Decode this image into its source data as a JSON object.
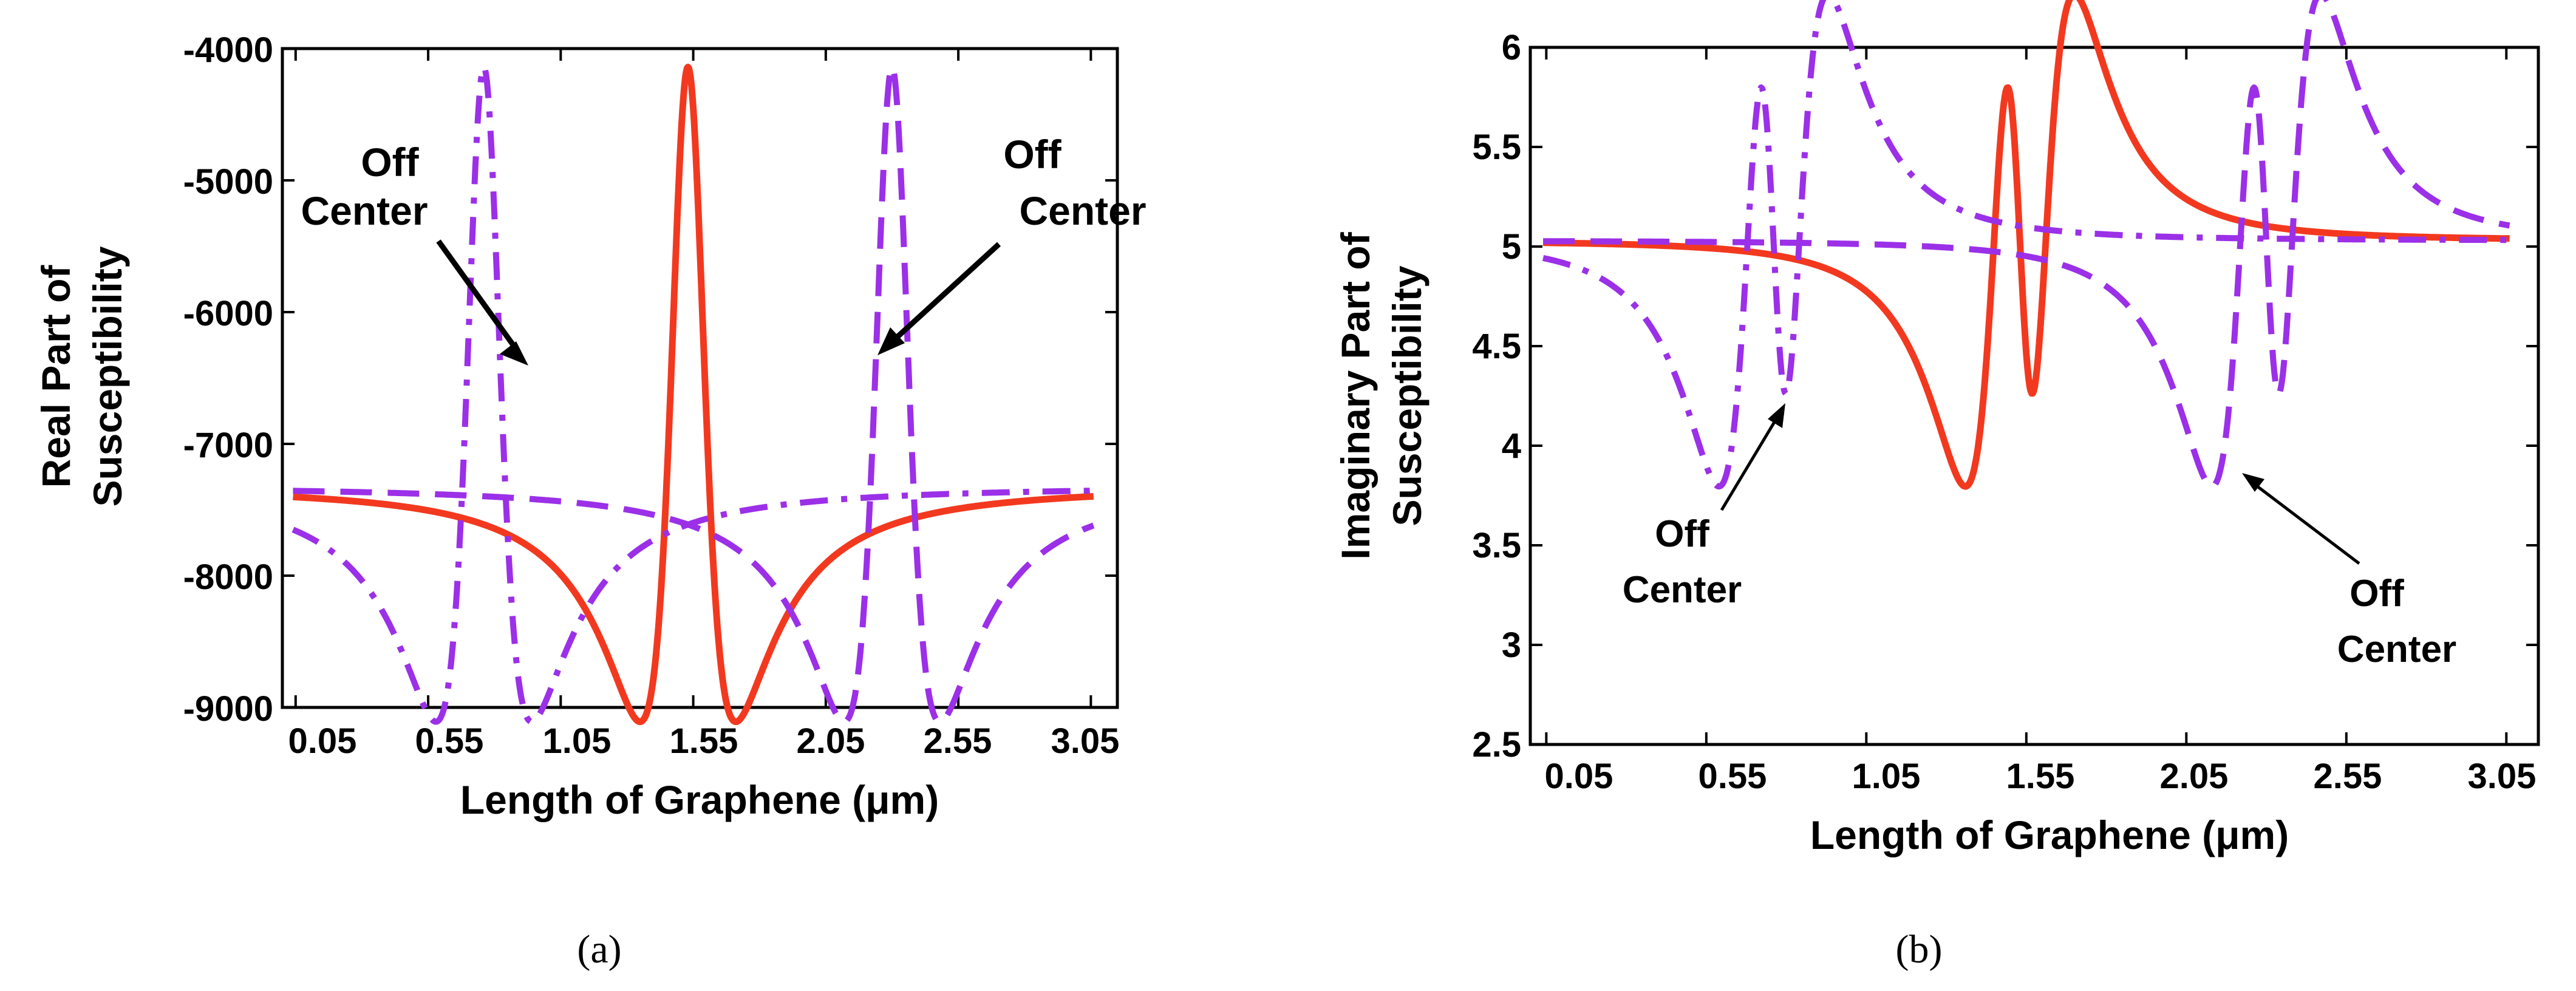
{
  "chart_data": [
    {
      "type": "line",
      "panel_label": "(a)",
      "xlabel": "Length of Graphene (μm)",
      "ylabel": [
        "Real Part of",
        "Susceptibility"
      ],
      "xlim": [
        0.0,
        3.15
      ],
      "ylim": [
        -9000,
        -4000
      ],
      "xticks": [
        0.05,
        0.55,
        1.05,
        1.55,
        2.05,
        2.55,
        3.05
      ],
      "xtick_labels": [
        "0.05",
        "0.55",
        "1.05",
        "1.55",
        "2.05",
        "2.55",
        "3.05"
      ],
      "yticks": [
        -9000,
        -8000,
        -7000,
        -6000,
        -5000,
        -4000
      ],
      "ytick_labels": [
        "-9000",
        "-8000",
        "-7000",
        "-6000",
        "-5000",
        "-4000"
      ],
      "series": [
        {
          "name": "center",
          "style": "solid",
          "color": "#f2391f",
          "baseline": -7320,
          "dispersive": true,
          "centers": [
            1.53
          ],
          "gamma": 0.14,
          "amplitude": 3180
        },
        {
          "name": "off-center-left",
          "style": "dashdot",
          "color": "#9b30e8",
          "baseline": -7320,
          "dispersive": true,
          "centers": [
            0.76
          ],
          "gamma": 0.14,
          "amplitude": 3180
        },
        {
          "name": "off-center-right",
          "style": "dashed",
          "color": "#9b30e8",
          "baseline": -7320,
          "dispersive": true,
          "centers": [
            2.3
          ],
          "gamma": 0.14,
          "amplitude": 3180
        }
      ],
      "annotations": [
        {
          "lines": [
            "Off",
            "Center"
          ],
          "side": "left"
        },
        {
          "lines": [
            "Off",
            "Center"
          ],
          "side": "right"
        }
      ]
    },
    {
      "type": "line",
      "panel_label": "(b)",
      "xlabel": "Length of Graphene (μm)",
      "ylabel": [
        "Imaginary Part of",
        "Susceptibility"
      ],
      "xlim": [
        0.0,
        3.15
      ],
      "ylim": [
        2.5,
        6.0
      ],
      "xticks": [
        0.05,
        0.55,
        1.05,
        1.55,
        2.05,
        2.55,
        3.05
      ],
      "xtick_labels": [
        "0.05",
        "0.55",
        "1.05",
        "1.55",
        "2.05",
        "2.55",
        "3.05"
      ],
      "yticks": [
        2.5,
        3.0,
        3.5,
        4.0,
        4.5,
        5.0,
        5.5,
        6.0
      ],
      "ytick_labels": [
        "2.5",
        "3",
        "3.5",
        "4",
        "4.5",
        "5",
        "5.5",
        "6"
      ],
      "series": [
        {
          "name": "center",
          "style": "solid",
          "color": "#f2391f",
          "baseline": 5.03,
          "dispersive": false,
          "centers": [
            1.53
          ],
          "gamma": 0.14,
          "amplitude": 2.25
        },
        {
          "name": "off-center-left",
          "style": "dashdot",
          "color": "#9b30e8",
          "baseline": 5.03,
          "dispersive": false,
          "centers": [
            0.76
          ],
          "gamma": 0.14,
          "amplitude": 2.25
        },
        {
          "name": "off-center-right",
          "style": "dashed",
          "color": "#9b30e8",
          "baseline": 5.03,
          "dispersive": false,
          "centers": [
            2.3
          ],
          "gamma": 0.14,
          "amplitude": 2.25
        }
      ],
      "annotations": [
        {
          "lines": [
            "Off",
            "Center"
          ],
          "side": "left"
        },
        {
          "lines": [
            "Off",
            "Center"
          ],
          "side": "right"
        }
      ]
    }
  ]
}
